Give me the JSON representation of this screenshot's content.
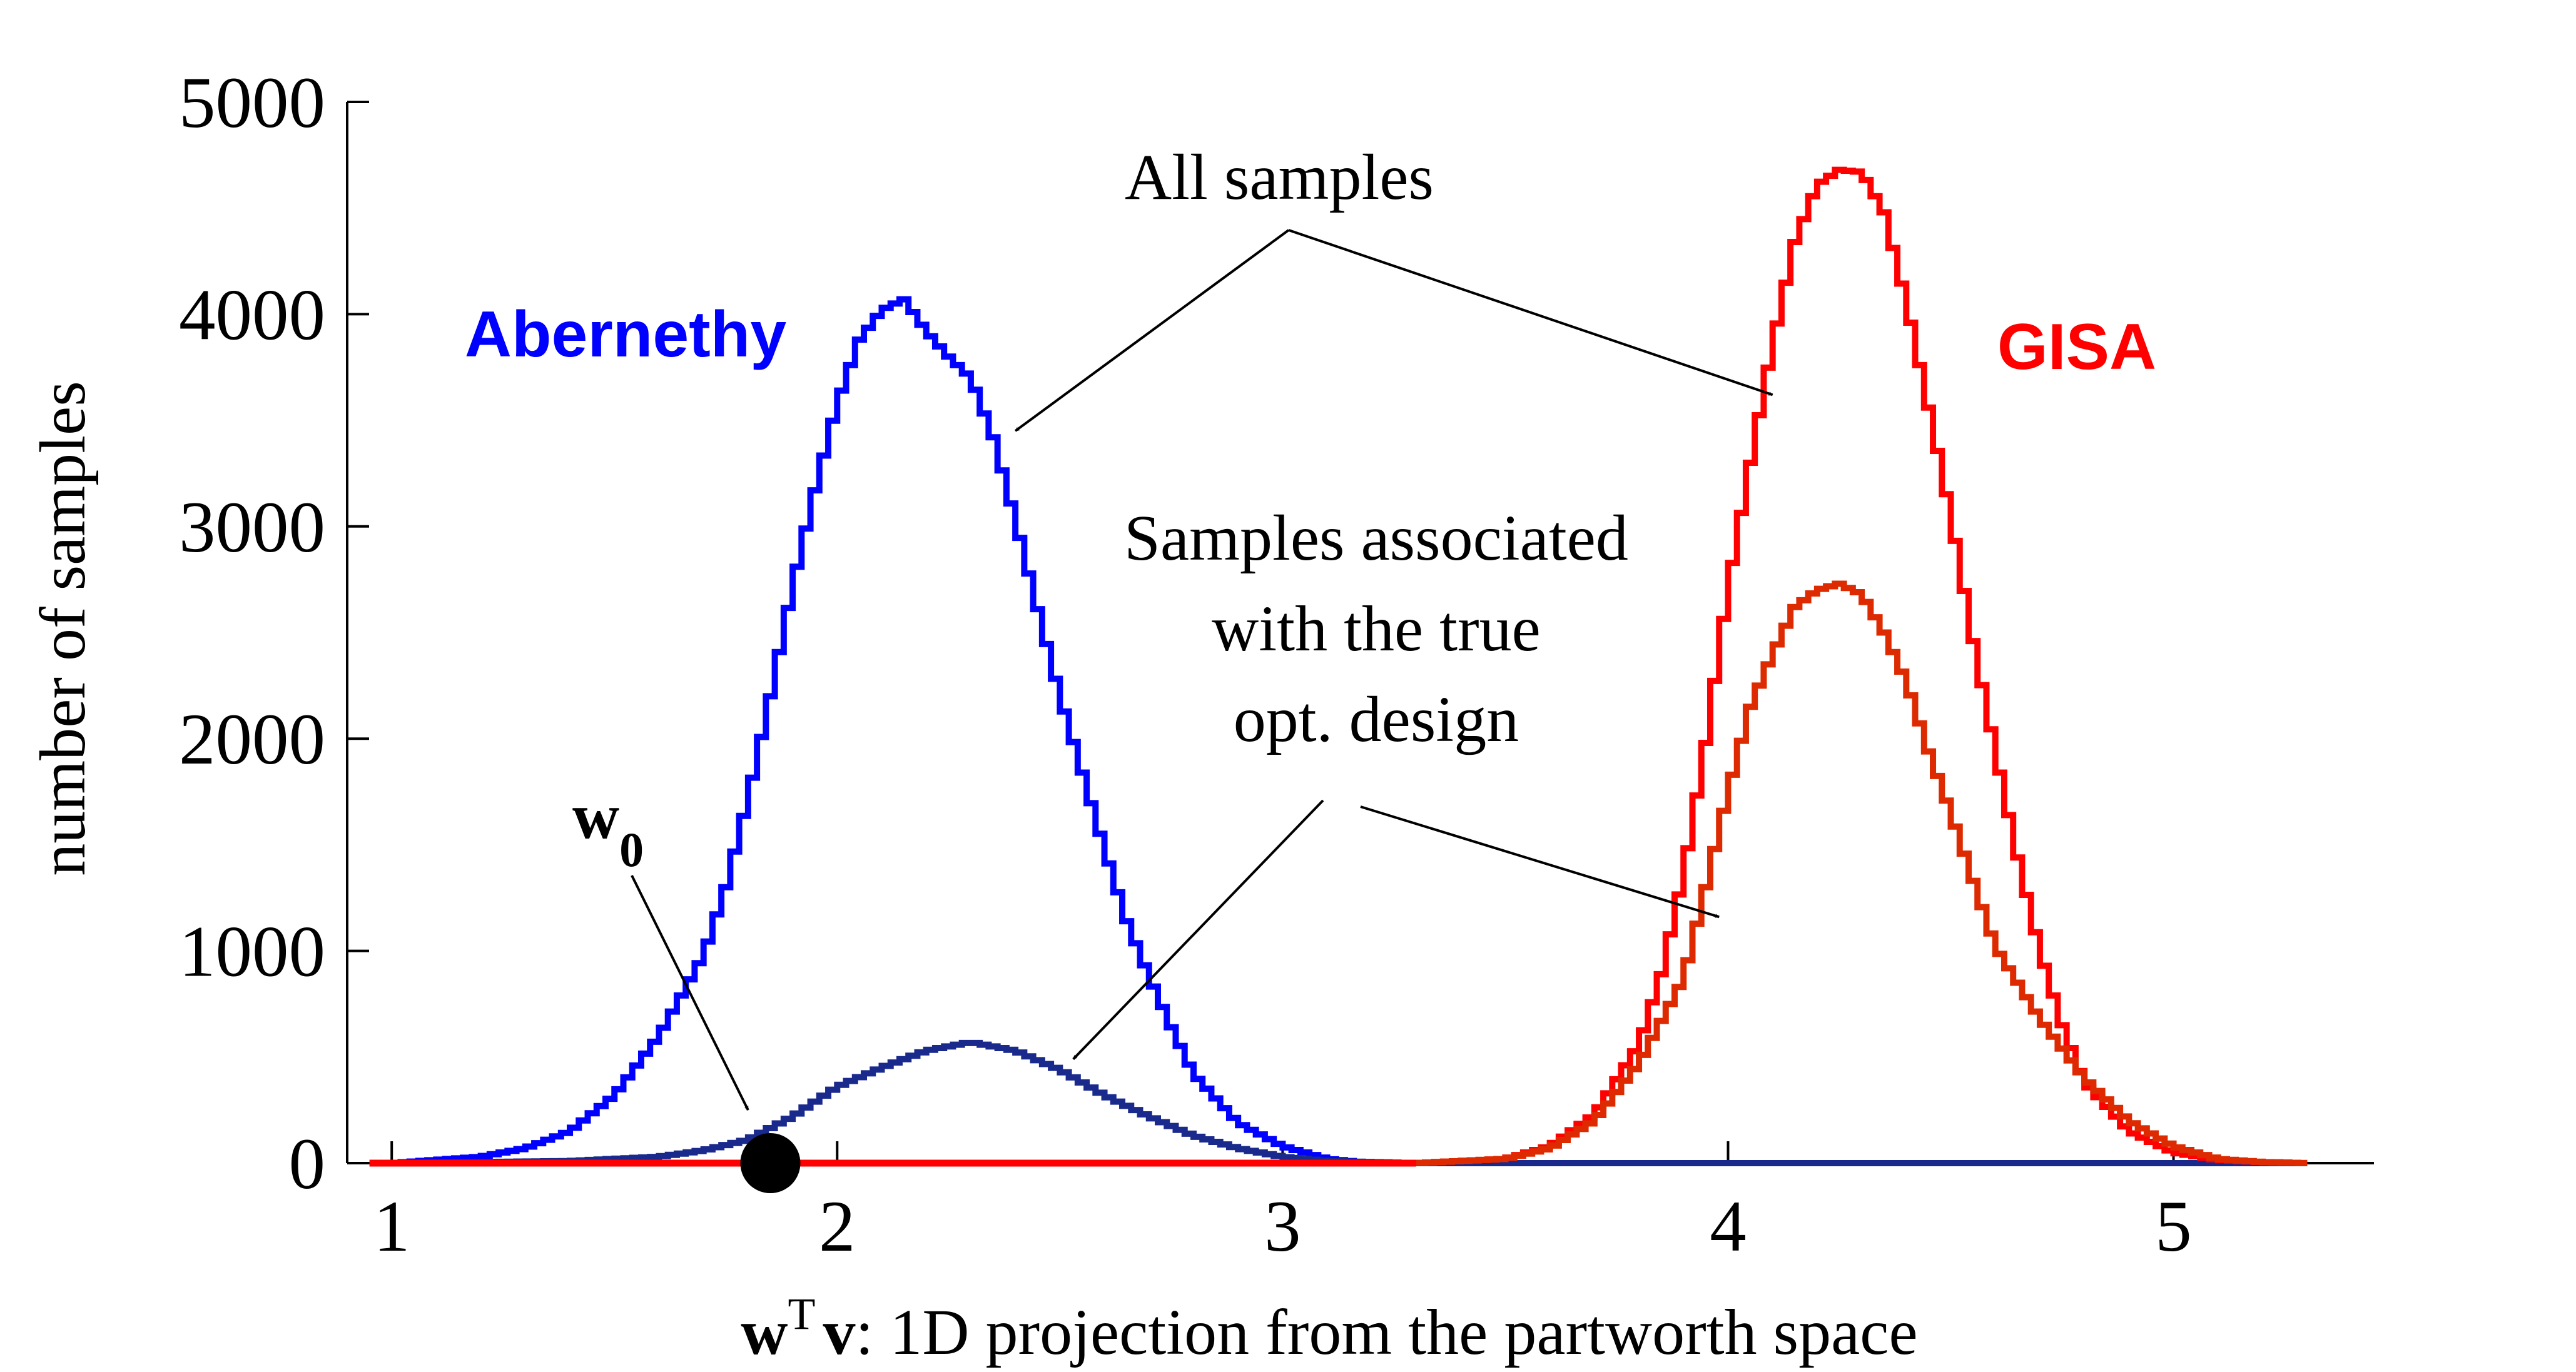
{
  "colors": {
    "abernethy": "#0000ff",
    "abernethy_opt": "#1a2a8c",
    "gisa": "#ff0000",
    "gisa_opt": "#dd2a00",
    "axis": "#000000",
    "marker": "#000000"
  },
  "chart_data": {
    "type": "line",
    "style": "step-histogram",
    "xlabel": {
      "w": "w",
      "sup": "T",
      "v": "v",
      "rest": ": 1D projection from the partworth space"
    },
    "ylabel": "number of samples",
    "xlim": [
      0.9,
      5.45
    ],
    "ylim": [
      0,
      5000
    ],
    "xticks": [
      1,
      2,
      3,
      4,
      5
    ],
    "yticks": [
      0,
      1000,
      2000,
      3000,
      4000,
      5000
    ],
    "grid": false,
    "legend": "none",
    "series": [
      {
        "name": "Abernethy",
        "role": "all",
        "color_key": "abernethy",
        "x": [
          1.0,
          1.2,
          1.3,
          1.4,
          1.5,
          1.6,
          1.7,
          1.75,
          1.8,
          1.85,
          1.9,
          1.95,
          2.0,
          2.05,
          2.1,
          2.15,
          2.2,
          2.25,
          2.3,
          2.35,
          2.4,
          2.45,
          2.5,
          2.55,
          2.6,
          2.65,
          2.7,
          2.75,
          2.8,
          2.9,
          3.0,
          3.1,
          3.2
        ],
        "y": [
          0,
          30,
          70,
          150,
          320,
          600,
          980,
          1300,
          1720,
          2200,
          2720,
          3170,
          3580,
          3880,
          4020,
          4070,
          3920,
          3800,
          3700,
          3420,
          3030,
          2610,
          2200,
          1840,
          1480,
          1140,
          880,
          640,
          420,
          190,
          80,
          20,
          0
        ]
      },
      {
        "name": "Abernethy",
        "role": "true opt. design",
        "color_key": "abernethy_opt",
        "x": [
          1.0,
          1.4,
          1.6,
          1.7,
          1.8,
          1.9,
          2.0,
          2.1,
          2.2,
          2.3,
          2.4,
          2.5,
          2.6,
          2.7,
          2.8,
          2.9,
          3.0,
          3.1,
          3.3,
          5.3
        ],
        "y": [
          0,
          10,
          30,
          60,
          110,
          220,
          360,
          450,
          530,
          570,
          530,
          440,
          320,
          220,
          130,
          70,
          30,
          10,
          0,
          0
        ]
      },
      {
        "name": "GISA",
        "role": "all",
        "color_key": "gisa",
        "x": [
          3.3,
          3.5,
          3.6,
          3.7,
          3.8,
          3.85,
          3.9,
          3.95,
          4.0,
          4.05,
          4.1,
          4.15,
          4.2,
          4.25,
          4.3,
          4.35,
          4.4,
          4.45,
          4.5,
          4.55,
          4.6,
          4.65,
          4.7,
          4.75,
          4.8,
          4.9,
          5.0,
          5.1,
          5.2,
          5.3
        ],
        "y": [
          0,
          20,
          80,
          230,
          560,
          890,
          1360,
          1980,
          2710,
          3300,
          3860,
          4340,
          4610,
          4680,
          4670,
          4480,
          4060,
          3560,
          3050,
          2460,
          1940,
          1440,
          1000,
          650,
          380,
          150,
          50,
          15,
          5,
          0
        ]
      },
      {
        "name": "GISA",
        "role": "true opt. design",
        "color_key": "gisa_opt",
        "x": [
          3.3,
          3.5,
          3.6,
          3.7,
          3.8,
          3.9,
          3.95,
          4.0,
          4.05,
          4.1,
          4.15,
          4.2,
          4.25,
          4.3,
          4.35,
          4.4,
          4.45,
          4.5,
          4.55,
          4.6,
          4.7,
          4.8,
          4.9,
          5.0,
          5.1,
          5.2,
          5.3
        ],
        "y": [
          0,
          20,
          70,
          200,
          470,
          870,
          1300,
          1750,
          2150,
          2400,
          2620,
          2700,
          2730,
          2680,
          2500,
          2270,
          1940,
          1650,
          1330,
          1020,
          680,
          400,
          200,
          80,
          20,
          5,
          0
        ]
      },
      {
        "name": "GISA",
        "role": "baseline",
        "color_key": "gisa",
        "x": [
          0.95,
          3.3
        ],
        "y": [
          0,
          0
        ]
      }
    ],
    "marker": {
      "x": 1.85,
      "y": 0
    },
    "annotations": [
      {
        "text": "All samples",
        "arrows_to": [
          [
            2.4,
            3450
          ],
          [
            4.1,
            3620
          ]
        ]
      },
      {
        "text_lines": [
          "Samples associated",
          "with the true",
          "opt. design"
        ],
        "arrows_to": [
          [
            2.53,
            490
          ],
          [
            3.98,
            1160
          ]
        ]
      },
      {
        "text_main": "w",
        "text_sub": "0",
        "arrows_to": [
          [
            1.8,
            250
          ]
        ]
      }
    ]
  },
  "labels": {
    "abernethy": "Abernethy",
    "gisa": "GISA",
    "all_samples": "All samples",
    "opt_line1": "Samples associated",
    "opt_line2": "with the true",
    "opt_line3": "opt. design",
    "w0_main": "w",
    "w0_sub": "0"
  }
}
